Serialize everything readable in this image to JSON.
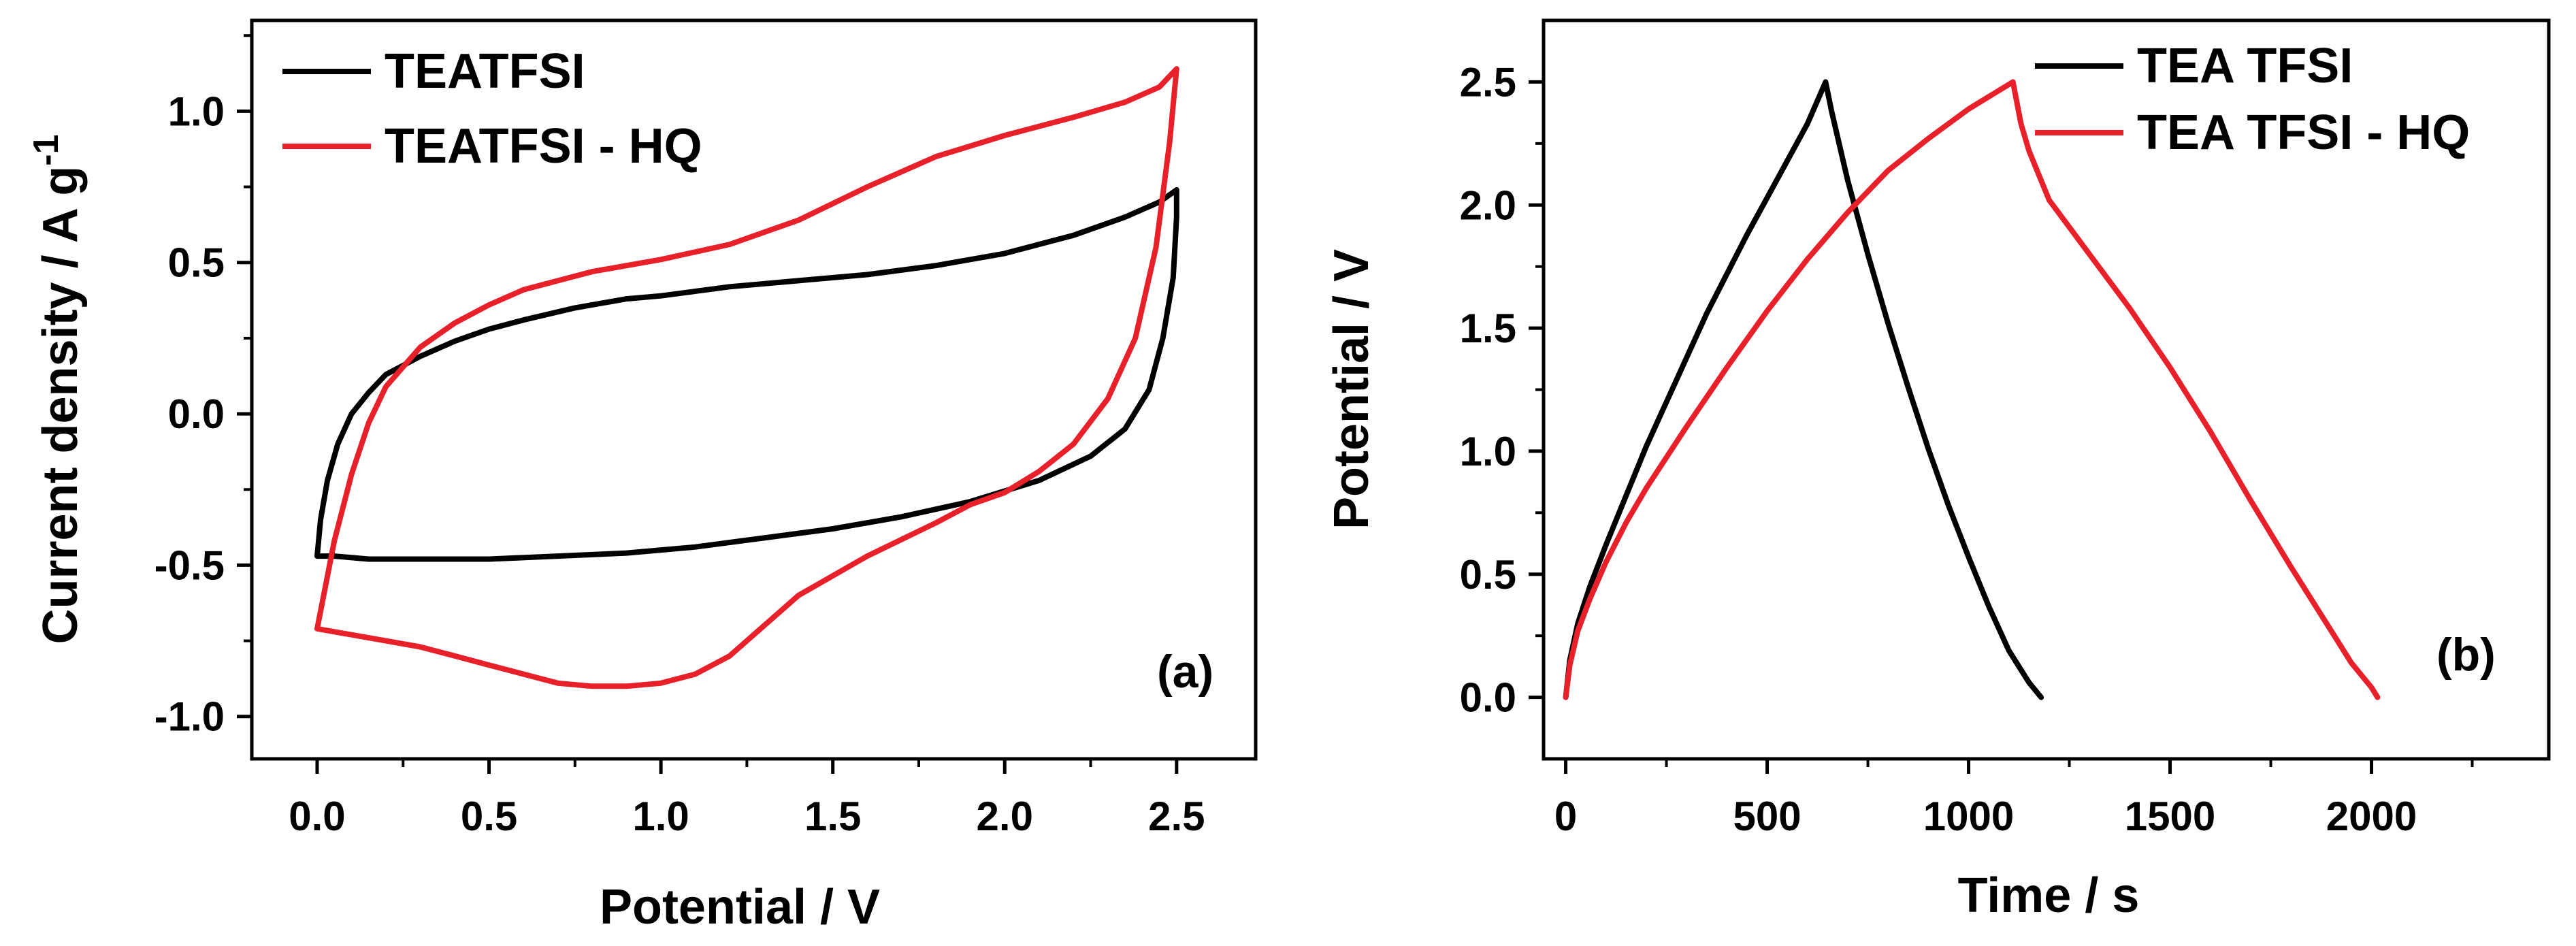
{
  "chart_data": [
    {
      "type": "line",
      "panel_label": "(a)",
      "xlabel": "Potential / V",
      "ylabel_main": "Current density / A g",
      "ylabel_sup": "-1",
      "xlim": [
        -0.19,
        2.73
      ],
      "ylim": [
        -1.14,
        1.3
      ],
      "x_ticks": [
        0.0,
        0.5,
        1.0,
        1.5,
        2.0,
        2.5
      ],
      "x_tick_labels": [
        "0.0",
        "0.5",
        "1.0",
        "1.5",
        "2.0",
        "2.5"
      ],
      "y_ticks": [
        -1.0,
        -0.5,
        0.0,
        0.5,
        1.0
      ],
      "y_tick_labels": [
        "-1.0",
        "-0.5",
        "0.0",
        "0.5",
        "1.0"
      ],
      "legend_position": "top-left",
      "series": [
        {
          "name": "TEATFSI",
          "color": "#000000",
          "x": [
            0.0,
            0.01,
            0.03,
            0.06,
            0.1,
            0.15,
            0.2,
            0.3,
            0.4,
            0.5,
            0.6,
            0.75,
            0.9,
            1.0,
            1.2,
            1.4,
            1.6,
            1.8,
            2.0,
            2.2,
            2.35,
            2.45,
            2.5,
            2.5,
            2.49,
            2.46,
            2.42,
            2.35,
            2.25,
            2.1,
            1.9,
            1.7,
            1.5,
            1.3,
            1.1,
            0.9,
            0.7,
            0.5,
            0.3,
            0.15,
            0.05,
            0.0
          ],
          "y": [
            -0.47,
            -0.35,
            -0.22,
            -0.1,
            0.0,
            0.07,
            0.13,
            0.19,
            0.24,
            0.28,
            0.31,
            0.35,
            0.38,
            0.39,
            0.42,
            0.44,
            0.46,
            0.49,
            0.53,
            0.59,
            0.65,
            0.7,
            0.74,
            0.65,
            0.45,
            0.25,
            0.08,
            -0.05,
            -0.14,
            -0.22,
            -0.29,
            -0.34,
            -0.38,
            -0.41,
            -0.44,
            -0.46,
            -0.47,
            -0.48,
            -0.48,
            -0.48,
            -0.47,
            -0.47
          ]
        },
        {
          "name": "TEATFSI - HQ",
          "color": "#e8202a",
          "x": [
            0.0,
            0.05,
            0.1,
            0.15,
            0.2,
            0.3,
            0.4,
            0.5,
            0.6,
            0.8,
            1.0,
            1.2,
            1.4,
            1.6,
            1.8,
            2.0,
            2.2,
            2.35,
            2.45,
            2.5,
            2.48,
            2.44,
            2.38,
            2.3,
            2.2,
            2.1,
            2.0,
            1.9,
            1.8,
            1.6,
            1.4,
            1.3,
            1.2,
            1.1,
            1.0,
            0.9,
            0.8,
            0.7,
            0.6,
            0.5,
            0.4,
            0.3,
            0.2,
            0.1,
            0.0
          ],
          "y": [
            -0.71,
            -0.42,
            -0.2,
            -0.03,
            0.09,
            0.22,
            0.3,
            0.36,
            0.41,
            0.47,
            0.51,
            0.56,
            0.64,
            0.75,
            0.85,
            0.92,
            0.98,
            1.03,
            1.08,
            1.14,
            0.9,
            0.55,
            0.25,
            0.05,
            -0.1,
            -0.19,
            -0.26,
            -0.3,
            -0.36,
            -0.47,
            -0.6,
            -0.7,
            -0.8,
            -0.86,
            -0.89,
            -0.9,
            -0.9,
            -0.89,
            -0.86,
            -0.83,
            -0.8,
            -0.77,
            -0.75,
            -0.73,
            -0.71
          ]
        }
      ]
    },
    {
      "type": "line",
      "panel_label": "(b)",
      "xlabel": "Time / s",
      "ylabel": "Potential / V",
      "xlim": [
        -55,
        2440
      ],
      "ylim": [
        -0.25,
        2.75
      ],
      "x_ticks": [
        0,
        500,
        1000,
        1500,
        2000
      ],
      "x_tick_labels": [
        "0",
        "500",
        "1000",
        "1500",
        "2000"
      ],
      "y_ticks": [
        0.0,
        0.5,
        1.0,
        1.5,
        2.0,
        2.5
      ],
      "y_tick_labels": [
        "0.0",
        "0.5",
        "1.0",
        "1.5",
        "2.0",
        "2.5"
      ],
      "legend_position": "top-right",
      "series": [
        {
          "name": "TEA TFSI",
          "color": "#000000",
          "x": [
            0,
            10,
            30,
            60,
            100,
            150,
            200,
            250,
            300,
            350,
            400,
            450,
            500,
            550,
            600,
            645,
            660,
            700,
            750,
            800,
            850,
            900,
            950,
            1000,
            1050,
            1100,
            1150,
            1180
          ],
          "y": [
            0.0,
            0.15,
            0.3,
            0.45,
            0.62,
            0.82,
            1.02,
            1.2,
            1.38,
            1.56,
            1.72,
            1.88,
            2.03,
            2.18,
            2.33,
            2.5,
            2.38,
            2.1,
            1.8,
            1.52,
            1.26,
            1.01,
            0.78,
            0.57,
            0.37,
            0.19,
            0.06,
            0.0
          ]
        },
        {
          "name": "TEA TFSI - HQ",
          "color": "#e8202a",
          "x": [
            0,
            10,
            30,
            60,
            100,
            150,
            200,
            300,
            400,
            500,
            600,
            700,
            800,
            900,
            1000,
            1050,
            1110,
            1130,
            1150,
            1200,
            1300,
            1400,
            1500,
            1600,
            1700,
            1800,
            1900,
            1950,
            2000,
            2015
          ],
          "y": [
            0.0,
            0.13,
            0.27,
            0.4,
            0.55,
            0.71,
            0.85,
            1.1,
            1.34,
            1.57,
            1.78,
            1.97,
            2.14,
            2.27,
            2.39,
            2.44,
            2.5,
            2.33,
            2.22,
            2.02,
            1.8,
            1.58,
            1.34,
            1.08,
            0.8,
            0.53,
            0.27,
            0.14,
            0.04,
            0.0
          ]
        }
      ]
    }
  ]
}
